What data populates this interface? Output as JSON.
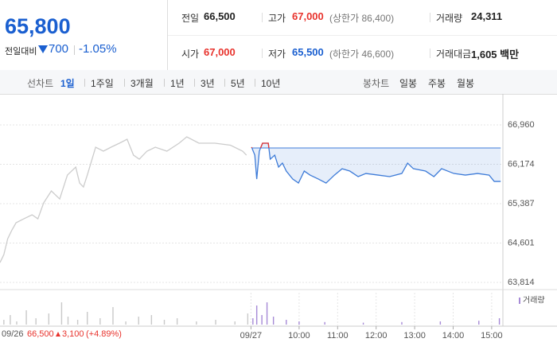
{
  "quote": {
    "price": "65,800",
    "change_label": "전일대비",
    "change": "700",
    "rate": "-1.05%",
    "rows": [
      [
        {
          "label": "전일",
          "value": "66,500"
        },
        {
          "label": "고가",
          "value": "67,000",
          "note": "(상한가 86,400)"
        },
        {
          "label": "거래량",
          "value": "24,311"
        }
      ],
      [
        {
          "label": "시가",
          "value": "67,000"
        },
        {
          "label": "저가",
          "value": "65,500",
          "note": "(하한가 46,600)"
        },
        {
          "label": "거래대금",
          "value": "1,605 백만"
        }
      ]
    ]
  },
  "tabs": {
    "line_label": "선차트",
    "line": [
      "1일",
      "1주일",
      "3개월",
      "1년",
      "3년",
      "5년",
      "10년"
    ],
    "candle_label": "봉차트",
    "candle": [
      "일봉",
      "주봉",
      "월봉"
    ]
  },
  "prev_day": {
    "date": "09/26",
    "close": "66,500",
    "change": "3,100",
    "rate": "(+4.89%)"
  },
  "chart_data": {
    "type": "line",
    "xlim": [
      -406,
      375
    ],
    "ylim": [
      63734,
      67294
    ],
    "baseline": 66500,
    "yticks": [
      {
        "value": 66960,
        "label": "66,960"
      },
      {
        "value": 66174,
        "label": "66,174"
      },
      {
        "value": 65387,
        "label": "65,387"
      },
      {
        "value": 64601,
        "label": "64,601"
      },
      {
        "value": 63814,
        "label": "63,814"
      }
    ],
    "xticks": [
      {
        "value": -15,
        "label": "09/27"
      },
      {
        "value": 60,
        "label": "10:00"
      },
      {
        "value": 120,
        "label": "11:00"
      },
      {
        "value": 180,
        "label": "12:00"
      },
      {
        "value": 240,
        "label": "13:00"
      },
      {
        "value": 300,
        "label": "14:00"
      },
      {
        "value": 360,
        "label": "15:00"
      }
    ],
    "series": [
      {
        "color": "#cccccc",
        "x": [
          -406,
          -400,
          -394,
          -388,
          -381,
          -369,
          -356,
          -347,
          -338,
          -326,
          -313,
          -301,
          -288,
          -282,
          -276,
          -270,
          -257,
          -245,
          -233,
          -220,
          -208,
          -198,
          -189,
          -177,
          -164,
          -146,
          -127,
          -115,
          -96,
          -71,
          -47,
          -28,
          -22
        ],
        "values": [
          64210,
          64370,
          64686,
          64845,
          65005,
          65084,
          65164,
          65084,
          65402,
          65640,
          65481,
          65958,
          66117,
          65799,
          65720,
          65958,
          66515,
          66436,
          66515,
          66595,
          66674,
          66356,
          66276,
          66436,
          66515,
          66436,
          66595,
          66722,
          66595,
          66595,
          66555,
          66436,
          66356
        ]
      },
      {
        "color": "#3d7bd8",
        "up_color": "#e8332d",
        "x": [
          -14,
          -9,
          -6,
          -2,
          3,
          12,
          15,
          22,
          28,
          34,
          40,
          50,
          59,
          68,
          77,
          90,
          102,
          115,
          127,
          139,
          152,
          164,
          183,
          201,
          220,
          229,
          238,
          257,
          270,
          282,
          301,
          319,
          338,
          356,
          364,
          374
        ],
        "values": [
          66515,
          66356,
          65879,
          66436,
          66595,
          66595,
          66276,
          66356,
          66117,
          66197,
          66038,
          65879,
          65799,
          66038,
          65958,
          65879,
          65799,
          65958,
          66085,
          66038,
          65927,
          65990,
          65958,
          65927,
          65990,
          66197,
          66085,
          66038,
          65927,
          66085,
          65990,
          65958,
          65990,
          65958,
          65831,
          65831
        ]
      }
    ],
    "volume": {
      "name": "거래량",
      "ylim": [
        0,
        100
      ],
      "color": "#c9c9c9",
      "today_color": "#a68ad6",
      "x": [
        -400,
        -390,
        -380,
        -365,
        -350,
        -330,
        -310,
        -300,
        -285,
        -270,
        -250,
        -230,
        -210,
        -190,
        -170,
        -150,
        -130,
        -100,
        -70,
        -40,
        -20,
        -12,
        -6,
        2,
        10,
        20,
        40,
        60,
        100,
        160,
        220,
        280,
        340,
        372
      ],
      "values": [
        15,
        30,
        10,
        45,
        20,
        35,
        70,
        25,
        15,
        40,
        20,
        55,
        10,
        25,
        30,
        15,
        20,
        10,
        15,
        10,
        35,
        20,
        60,
        30,
        70,
        25,
        15,
        10,
        8,
        6,
        8,
        10,
        12,
        20
      ]
    }
  }
}
